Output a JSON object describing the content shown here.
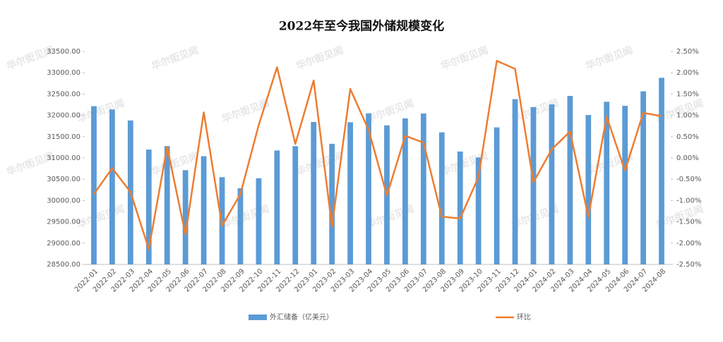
{
  "chart_data": {
    "type": "bar_line",
    "title": "2022年至今我国外储规模变化",
    "watermark": "华尔街见闻",
    "categories": [
      "2022-01",
      "2022-02",
      "2022-03",
      "2022-04",
      "2022-05",
      "2022-06",
      "2022-07",
      "2022-08",
      "2022-09",
      "2022-10",
      "2022-11",
      "2022-12",
      "2023-01",
      "2023-02",
      "2023-03",
      "2023-04",
      "2023-05",
      "2023-06",
      "2023-07",
      "2023-08",
      "2023-09",
      "2023-10",
      "2023-11",
      "2023-12",
      "2024-01",
      "2024-02",
      "2024-03",
      "2024-04",
      "2024-05",
      "2024-06",
      "2024-07",
      "2024-08"
    ],
    "series": [
      {
        "name": "外汇储备（亿美元）",
        "color": "#5b9bd5",
        "type": "bar",
        "values": [
          32216,
          32138,
          31880,
          31197,
          31278,
          30713,
          31041,
          30549,
          30290,
          30524,
          31175,
          31277,
          31845,
          31332,
          31839,
          32048,
          31765,
          31929,
          32043,
          31601,
          31151,
          31012,
          31718,
          32380,
          32193,
          32258,
          32457,
          32008,
          32320,
          32224,
          32564,
          32882
        ]
      },
      {
        "name": "环比",
        "color": "#ed7d31",
        "type": "line",
        "axis": "y2",
        "values": [
          -0.85,
          -0.24,
          -0.8,
          -2.14,
          0.26,
          -1.8,
          1.07,
          -1.59,
          -0.85,
          0.77,
          2.13,
          0.33,
          1.82,
          -1.61,
          1.62,
          0.66,
          -0.88,
          0.52,
          0.36,
          -1.38,
          -1.42,
          -0.45,
          2.28,
          2.09,
          -0.57,
          0.2,
          0.62,
          -1.38,
          0.97,
          -0.3,
          1.06,
          0.98
        ]
      }
    ],
    "ylim": [
      28500,
      33500
    ],
    "yticks": [
      {
        "value": 28500,
        "label": "28500.00"
      },
      {
        "value": 29000,
        "label": "29000.00"
      },
      {
        "value": 29500,
        "label": "29500.00"
      },
      {
        "value": 30000,
        "label": "30000.00"
      },
      {
        "value": 30500,
        "label": "30500.00"
      },
      {
        "value": 31000,
        "label": "31000.00"
      },
      {
        "value": 31500,
        "label": "31500.00"
      },
      {
        "value": 32000,
        "label": "32000.00"
      },
      {
        "value": 32500,
        "label": "32500.00"
      },
      {
        "value": 33000,
        "label": "33000.00"
      },
      {
        "value": 33500,
        "label": "33500.00"
      }
    ],
    "y2lim": [
      -2.5,
      2.5
    ],
    "y2ticks": [
      {
        "value": -2.5,
        "label": "-2.50%"
      },
      {
        "value": -2,
        "label": "-2.00%"
      },
      {
        "value": -1.5,
        "label": "-1.50%"
      },
      {
        "value": -1,
        "label": "-1.00%"
      },
      {
        "value": -0.5,
        "label": "-0.50%"
      },
      {
        "value": 0,
        "label": "0.00%"
      },
      {
        "value": 0.5,
        "label": "0.50%"
      },
      {
        "value": 1,
        "label": "1.00%"
      },
      {
        "value": 1.5,
        "label": "1.50%"
      },
      {
        "value": 2,
        "label": "2.00%"
      },
      {
        "value": 2.5,
        "label": "2.50%"
      }
    ],
    "grid": false,
    "legend": "bottom"
  }
}
